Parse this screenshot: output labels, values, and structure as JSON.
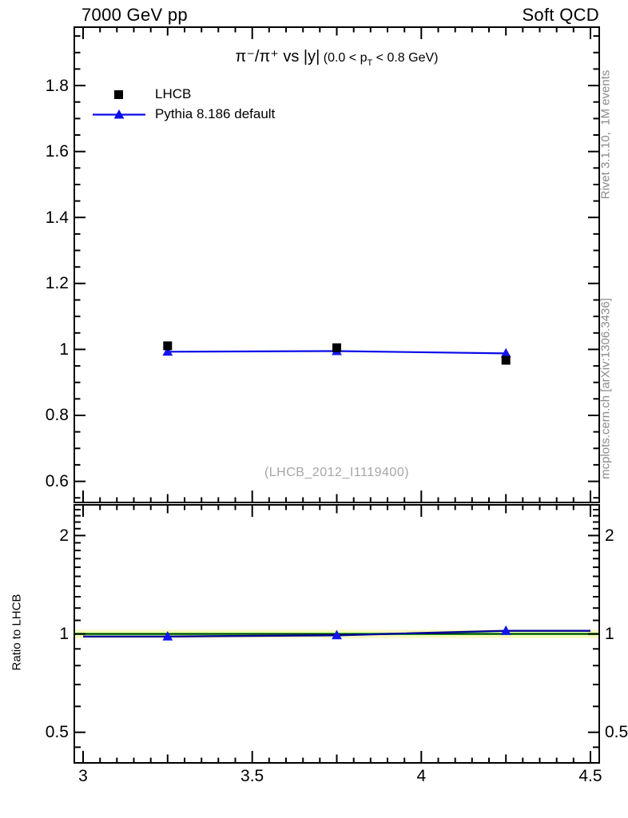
{
  "header": {
    "left": "7000 GeV pp",
    "right": "Soft QCD"
  },
  "title": {
    "main": "π⁻/π⁺ vs |y|",
    "sub_pre": " (0.0 < p",
    "sub_t": "T",
    "sub_post": " < 0.8 GeV)"
  },
  "watermark": "(LHCB_2012_I1119400)",
  "side_notes": {
    "top": "Rivet 3.1.10,  1M events",
    "bottom": "mcplots.cern.ch [arXiv:1306.3436]"
  },
  "legend": [
    {
      "label": "LHCB",
      "marker": "square",
      "color": "#000000"
    },
    {
      "label": "Pythia 8.186 default",
      "marker": "triangle",
      "color": "#0a0ae8"
    }
  ],
  "colors": {
    "frame": "#000000",
    "lhcb_marker": "#000000",
    "pythia_line": "#0a0ae8",
    "pythia_marker": "#1414f0",
    "ratio_line": "#000099",
    "band_fill": "#f8f8c0",
    "band_line": "#00b400",
    "band_center": "#1a1a1a",
    "note_gray": "#8a8a8a",
    "watermark_gray": "#a6a6a6"
  },
  "chart_data": [
    {
      "type": "scatter",
      "panel": "main",
      "title": "π⁻/π⁺ vs |y| (0.0 < pT < 0.8 GeV)",
      "x": [
        3.25,
        3.75,
        4.25
      ],
      "series": [
        {
          "name": "LHCB",
          "marker": "square",
          "color": "#000000",
          "line": false,
          "values": [
            1.011,
            1.005,
            0.967
          ]
        },
        {
          "name": "Pythia 8.186 default",
          "marker": "triangle",
          "color": "#0a0ae8",
          "line": true,
          "values": [
            0.993,
            0.995,
            0.988
          ]
        }
      ],
      "xlim": [
        2.974,
        4.526
      ],
      "ylim": [
        0.536,
        1.977
      ],
      "xticks": [
        3,
        3.5,
        4,
        4.5
      ],
      "xtick_labels": [
        "3",
        "3.5",
        "4",
        "4.5"
      ],
      "xticks_mid": [
        3.25,
        3.75,
        4.25
      ],
      "xminor_step": 0.05,
      "yticks": [
        0.6,
        0.8,
        1,
        1.2,
        1.4,
        1.6,
        1.8
      ],
      "ytick_labels": [
        "0.6",
        "0.8",
        "1",
        "1.2",
        "1.4",
        "1.6",
        "1.8"
      ],
      "yminor_step": 0.05,
      "grid": false,
      "legend_position": "top-left"
    },
    {
      "type": "line",
      "panel": "ratio",
      "ylabel": "Ratio to LHCB",
      "yscale": "log",
      "x": [
        3.25,
        3.75,
        4.25
      ],
      "series": [
        {
          "name": "Pythia 8.186 default / LHCB",
          "marker": "triangle",
          "marker_color": "#1414f0",
          "line_color": "#000099",
          "values": [
            0.982,
            0.99,
            1.022
          ]
        }
      ],
      "line_extends_to_bin_edges": [
        3.0,
        4.5
      ],
      "reference_band": {
        "center": 1.0,
        "half_width": 0.029
      },
      "xlim": [
        2.974,
        4.526
      ],
      "ylim": [
        0.403,
        2.483
      ],
      "xticks": [
        3,
        3.5,
        4,
        4.5
      ],
      "xtick_labels": [
        "3",
        "3.5",
        "4",
        "4.5"
      ],
      "xticks_mid": [
        3.25,
        3.75,
        4.25
      ],
      "xminor_step": 0.05,
      "yticks": [
        0.5,
        1,
        2
      ],
      "ytick_labels": [
        "0.5",
        "1",
        "2"
      ],
      "yminors": [
        0.45,
        0.6,
        0.7,
        0.8,
        0.9,
        1.1,
        1.2,
        1.3,
        1.4,
        1.5,
        1.6,
        1.7,
        1.8,
        1.9,
        2.1,
        2.2,
        2.3,
        2.4
      ],
      "grid": false
    }
  ]
}
